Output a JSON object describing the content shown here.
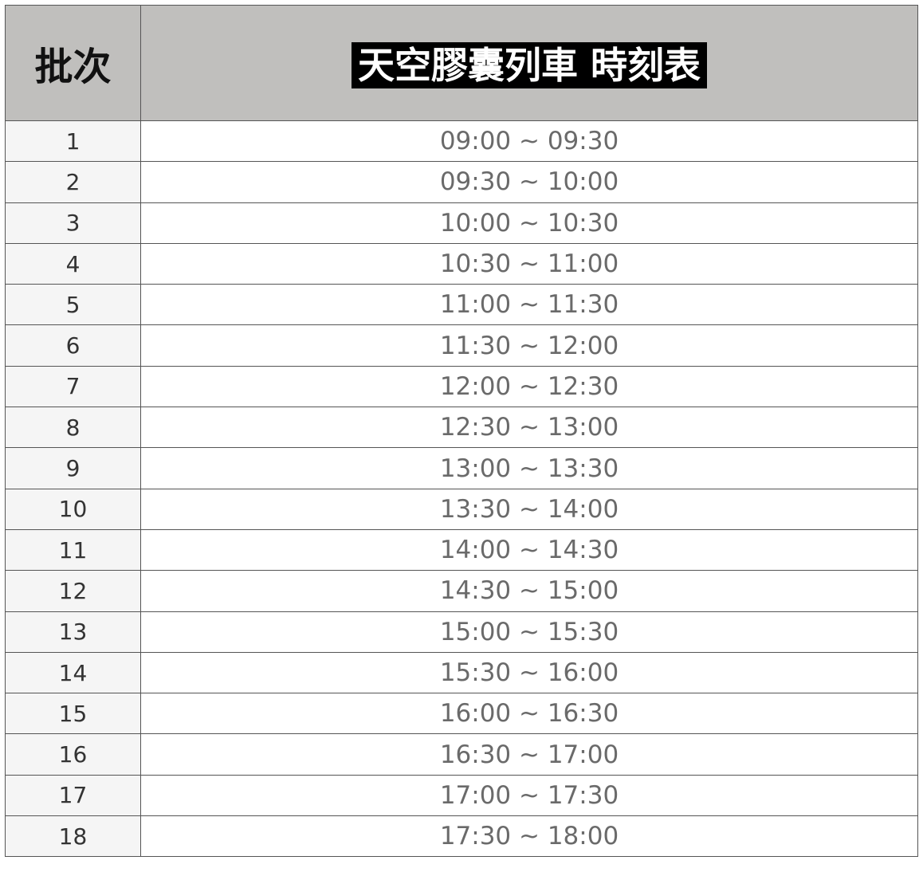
{
  "header": {
    "batch": "批次",
    "title": "天空膠囊列車 時刻表"
  },
  "rows": [
    {
      "n": "1",
      "t": "09:00 ~ 09:30"
    },
    {
      "n": "2",
      "t": "09:30 ~ 10:00"
    },
    {
      "n": "3",
      "t": "10:00 ~ 10:30"
    },
    {
      "n": "4",
      "t": "10:30 ~ 11:00"
    },
    {
      "n": "5",
      "t": "11:00 ~ 11:30"
    },
    {
      "n": "6",
      "t": "11:30 ~ 12:00"
    },
    {
      "n": "7",
      "t": "12:00 ~ 12:30"
    },
    {
      "n": "8",
      "t": "12:30 ~ 13:00"
    },
    {
      "n": "9",
      "t": "13:00 ~ 13:30"
    },
    {
      "n": "10",
      "t": "13:30 ~ 14:00"
    },
    {
      "n": "11",
      "t": "14:00 ~ 14:30"
    },
    {
      "n": "12",
      "t": "14:30 ~ 15:00"
    },
    {
      "n": "13",
      "t": "15:00 ~ 15:30"
    },
    {
      "n": "14",
      "t": "15:30 ~ 16:00"
    },
    {
      "n": "15",
      "t": "16:00 ~ 16:30"
    },
    {
      "n": "16",
      "t": "16:30 ~ 17:00"
    },
    {
      "n": "17",
      "t": "17:00 ~ 17:30"
    },
    {
      "n": "18",
      "t": "17:30 ~ 18:00"
    }
  ]
}
